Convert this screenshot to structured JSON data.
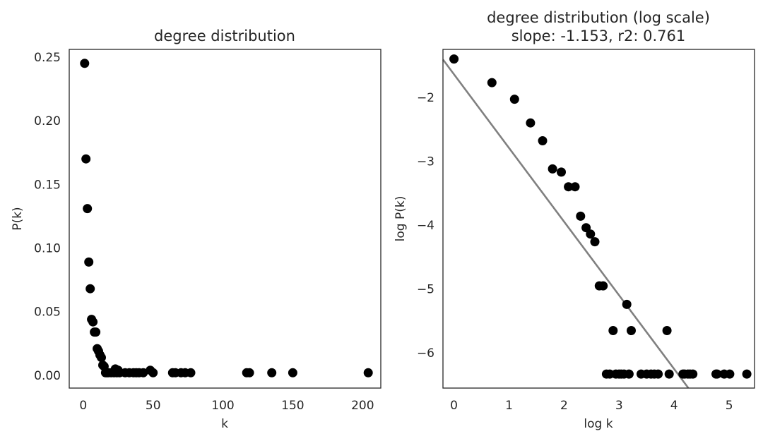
{
  "chart_data": [
    {
      "type": "scatter",
      "title": "degree distribution",
      "xlabel": "k",
      "ylabel": "P(k)",
      "xlim": [
        -10,
        213
      ],
      "ylim": [
        -0.01,
        0.256
      ],
      "xticks": [
        0,
        50,
        100,
        150,
        200
      ],
      "xtick_labels": [
        "0",
        "50",
        "100",
        "150",
        "200"
      ],
      "yticks": [
        0.0,
        0.05,
        0.1,
        0.15,
        0.2,
        0.25
      ],
      "ytick_labels": [
        "0.00",
        "0.05",
        "0.10",
        "0.15",
        "0.20",
        "0.25"
      ],
      "grid": false,
      "marker_color": "#000000",
      "points": [
        [
          1,
          0.245
        ],
        [
          2,
          0.17
        ],
        [
          3,
          0.131
        ],
        [
          4,
          0.089
        ],
        [
          5,
          0.068
        ],
        [
          6,
          0.044
        ],
        [
          7,
          0.042
        ],
        [
          8,
          0.034
        ],
        [
          9,
          0.034
        ],
        [
          10,
          0.021
        ],
        [
          11,
          0.019
        ],
        [
          12,
          0.016
        ],
        [
          13,
          0.014
        ],
        [
          14,
          0.008
        ],
        [
          15,
          0.007
        ],
        [
          16,
          0.002
        ],
        [
          17,
          0.002
        ],
        [
          18,
          0.002
        ],
        [
          20,
          0.002
        ],
        [
          22,
          0.002
        ],
        [
          23,
          0.005
        ],
        [
          24,
          0.002
        ],
        [
          25,
          0.004
        ],
        [
          26,
          0.002
        ],
        [
          30,
          0.002
        ],
        [
          33,
          0.002
        ],
        [
          36,
          0.002
        ],
        [
          38,
          0.002
        ],
        [
          40,
          0.002
        ],
        [
          43,
          0.002
        ],
        [
          48,
          0.004
        ],
        [
          50,
          0.002
        ],
        [
          64,
          0.002
        ],
        [
          66,
          0.002
        ],
        [
          70,
          0.002
        ],
        [
          73,
          0.002
        ],
        [
          77,
          0.002
        ],
        [
          117,
          0.002
        ],
        [
          119,
          0.002
        ],
        [
          135,
          0.002
        ],
        [
          150,
          0.002
        ],
        [
          204,
          0.002
        ]
      ]
    },
    {
      "type": "scatter",
      "title": "degree distribution (log scale)",
      "subtitle": "slope: -1.153, r2: 0.761",
      "xlabel": "log k",
      "ylabel": "log P(k)",
      "xlim": [
        -0.2,
        5.46
      ],
      "ylim": [
        -6.55,
        -1.25
      ],
      "xticks": [
        0,
        1,
        2,
        3,
        4,
        5
      ],
      "xtick_labels": [
        "0",
        "1",
        "2",
        "3",
        "4",
        "5"
      ],
      "yticks": [
        -6,
        -5,
        -4,
        -3,
        -2
      ],
      "ytick_labels": [
        "−6",
        "−5",
        "−4",
        "−3",
        "−2"
      ],
      "grid": false,
      "marker_color": "#000000",
      "fit_line": {
        "slope": -1.153,
        "intercept": -1.64,
        "color": "#808080"
      },
      "points": [
        [
          0.0,
          -1.4
        ],
        [
          0.69,
          -1.77
        ],
        [
          1.1,
          -2.03
        ],
        [
          1.39,
          -2.4
        ],
        [
          1.61,
          -2.68
        ],
        [
          1.79,
          -3.12
        ],
        [
          1.95,
          -3.17
        ],
        [
          2.08,
          -3.4
        ],
        [
          2.2,
          -3.4
        ],
        [
          2.3,
          -3.86
        ],
        [
          2.4,
          -4.04
        ],
        [
          2.48,
          -4.14
        ],
        [
          2.56,
          -4.26
        ],
        [
          2.64,
          -4.95
        ],
        [
          2.71,
          -4.95
        ],
        [
          2.77,
          -6.33
        ],
        [
          2.83,
          -6.33
        ],
        [
          2.89,
          -5.65
        ],
        [
          2.94,
          -6.33
        ],
        [
          3.0,
          -6.33
        ],
        [
          3.04,
          -6.33
        ],
        [
          3.09,
          -6.33
        ],
        [
          3.14,
          -5.24
        ],
        [
          3.18,
          -6.33
        ],
        [
          3.22,
          -5.65
        ],
        [
          3.4,
          -6.33
        ],
        [
          3.5,
          -6.33
        ],
        [
          3.58,
          -6.33
        ],
        [
          3.64,
          -6.33
        ],
        [
          3.71,
          -6.33
        ],
        [
          3.87,
          -5.65
        ],
        [
          3.91,
          -6.33
        ],
        [
          4.16,
          -6.33
        ],
        [
          4.19,
          -6.33
        ],
        [
          4.25,
          -6.33
        ],
        [
          4.29,
          -6.33
        ],
        [
          4.34,
          -6.33
        ],
        [
          4.76,
          -6.33
        ],
        [
          4.78,
          -6.33
        ],
        [
          4.91,
          -6.33
        ],
        [
          5.01,
          -6.33
        ],
        [
          5.32,
          -6.33
        ]
      ]
    }
  ]
}
